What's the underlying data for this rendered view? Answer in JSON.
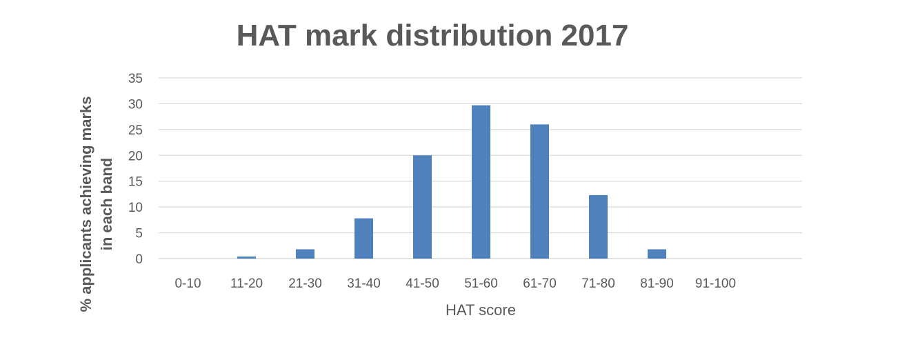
{
  "chart_data": {
    "type": "bar",
    "title": "HAT mark distribution 2017",
    "xlabel": "HAT score",
    "ylabel_lines": [
      "% applicants achieving marks",
      "in each band"
    ],
    "categories": [
      "0-10",
      "11-20",
      "21-30",
      "31-40",
      "41-50",
      "51-60",
      "61-70",
      "71-80",
      "81-90",
      "91-100"
    ],
    "values": [
      0,
      0.4,
      1.8,
      7.8,
      20,
      29.7,
      26,
      12.3,
      1.8,
      0
    ],
    "ylim": [
      0,
      35
    ],
    "yticks": [
      0,
      5,
      10,
      15,
      20,
      25,
      30,
      35
    ],
    "grid": true,
    "bar_color": "#4f81bd"
  }
}
